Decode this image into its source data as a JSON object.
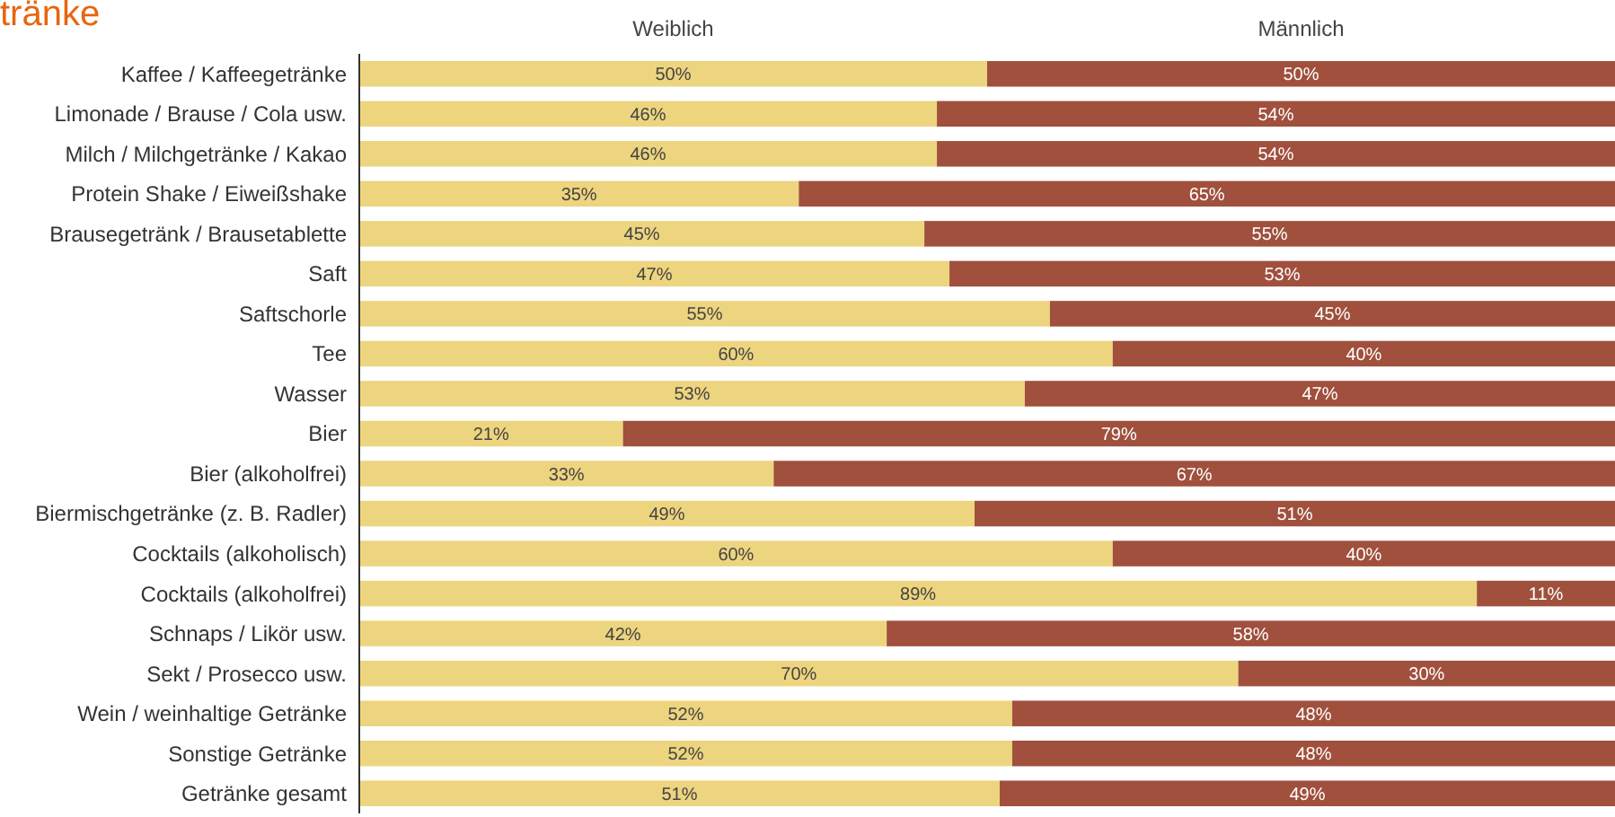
{
  "chart_data": {
    "type": "bar",
    "title": "tränke",
    "orientation": "horizontal",
    "stacked": true,
    "legend": "top",
    "xlim": [
      0,
      100
    ],
    "tick_labels": "y",
    "categories": [
      "Kaffee  / Kaffeegetränke",
      "Limonade  / Brause / Cola usw.",
      "Milch / Milchgetränke / Kakao",
      "Protein Shake / Eiweißshake",
      "Brausegetränk  / Brausetablette",
      "Saft",
      "Saftschorle",
      "Tee",
      "Wasser",
      "Bier",
      "Bier (alkoholfrei)",
      "Biermischgetränke (z. B. Radler)",
      "Cocktails (alkoholisch)",
      "Cocktails (alkoholfrei)",
      "Schnaps / Likör usw.",
      "Sekt / Prosecco usw.",
      "Wein / weinhaltige  Getränke",
      "Sonstige Getränke",
      "Getränke gesamt"
    ],
    "series": [
      {
        "name": "Weiblich",
        "color": "#edd47e",
        "values": [
          50,
          46,
          46,
          35,
          45,
          47,
          55,
          60,
          53,
          21,
          33,
          49,
          60,
          89,
          42,
          70,
          52,
          52,
          51
        ],
        "value_labels": [
          "50%",
          "46%",
          "46%",
          "35%",
          "45%",
          "47%",
          "55%",
          "60%",
          "53%",
          "21%",
          "33%",
          "49%",
          "60%",
          "89%",
          "42%",
          "70%",
          "52%",
          "52%",
          "51%"
        ]
      },
      {
        "name": "Männlich",
        "color": "#a0503c",
        "values": [
          50,
          54,
          54,
          65,
          55,
          53,
          45,
          40,
          47,
          79,
          67,
          51,
          40,
          11,
          58,
          30,
          48,
          48,
          49
        ],
        "value_labels": [
          "50%",
          "54%",
          "54%",
          "65%",
          "55%",
          "53%",
          "45%",
          "40%",
          "47%",
          "79%",
          "67%",
          "51%",
          "40%",
          "11%",
          "58%",
          "30%",
          "48%",
          "48%",
          "49%"
        ]
      }
    ]
  }
}
